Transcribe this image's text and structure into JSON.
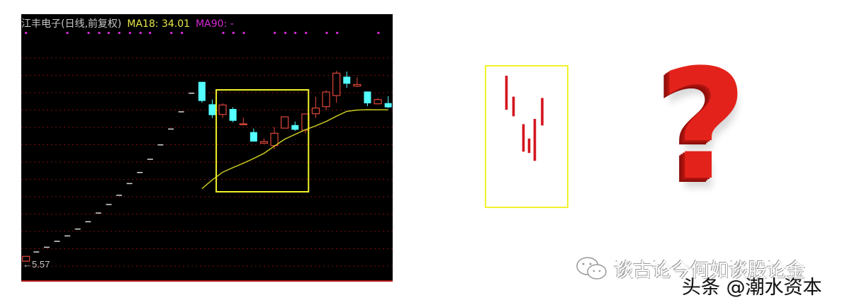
{
  "header": {
    "stock_name": "江丰电子(日线,前复权)",
    "ma18_label": "MA18: 34.01",
    "ma90_label": "MA90: -"
  },
  "low_price_label": "←5.57",
  "colors": {
    "background": "#000000",
    "up_candle": "#e0473a",
    "down_candle": "#54ffff",
    "flat_bar": "#d8d8d8",
    "ma18": "#c8c820",
    "ma90": "#d42ad4",
    "grid": "#7a1010",
    "highlight_box": "#f2f22a",
    "pattern_bar": "#d4141e",
    "question_mark": "#e3231b"
  },
  "icons": {
    "question": "question-mark-3d-icon",
    "wechat": "wechat-icon"
  },
  "watermark": {
    "line1": "谈古论今何如谈股论金",
    "line2": "头条 @潮水资本"
  },
  "chart_data": {
    "type": "candlestick",
    "title": "江丰电子(日线,前复权)",
    "ylim": [
      1.87,
      51.88
    ],
    "grid": true,
    "low_marker": 5.57,
    "candles": [
      {
        "o": 5.7,
        "h": 6.6,
        "l": 5.57,
        "c": 6.6
      },
      {
        "o": 7.42,
        "h": 7.42,
        "l": 7.42,
        "c": 7.42
      },
      {
        "o": 8.3,
        "h": 8.3,
        "l": 8.3,
        "c": 8.3
      },
      {
        "o": 9.41,
        "h": 9.41,
        "l": 9.41,
        "c": 9.41
      },
      {
        "o": 10.42,
        "h": 10.42,
        "l": 10.42,
        "c": 10.42
      },
      {
        "o": 11.7,
        "h": 11.7,
        "l": 11.7,
        "c": 11.7
      },
      {
        "o": 13.07,
        "h": 13.07,
        "l": 13.07,
        "c": 13.07
      },
      {
        "o": 14.7,
        "h": 14.7,
        "l": 14.7,
        "c": 14.7
      },
      {
        "o": 16.29,
        "h": 16.29,
        "l": 16.29,
        "c": 16.29
      },
      {
        "o": 18.01,
        "h": 18.01,
        "l": 18.01,
        "c": 18.01
      },
      {
        "o": 20.21,
        "h": 20.21,
        "l": 20.21,
        "c": 20.21
      },
      {
        "o": 22.28,
        "h": 22.28,
        "l": 22.28,
        "c": 22.28
      },
      {
        "o": 24.75,
        "h": 24.75,
        "l": 24.75,
        "c": 24.75
      },
      {
        "o": 27.44,
        "h": 27.44,
        "l": 27.44,
        "c": 27.44
      },
      {
        "o": 30.4,
        "h": 30.4,
        "l": 30.4,
        "c": 30.4
      },
      {
        "o": 33.62,
        "h": 33.62,
        "l": 33.62,
        "c": 33.62
      },
      {
        "o": 37.1,
        "h": 37.1,
        "l": 37.1,
        "c": 37.1
      },
      {
        "o": 39.22,
        "h": 39.22,
        "l": 35.34,
        "c": 35.65
      },
      {
        "o": 35.03,
        "h": 35.91,
        "l": 32.47,
        "c": 33.0
      },
      {
        "o": 33.13,
        "h": 35.21,
        "l": 32.47,
        "c": 34.9
      },
      {
        "o": 34.15,
        "h": 34.46,
        "l": 31.68,
        "c": 31.94
      },
      {
        "o": 31.28,
        "h": 32.56,
        "l": 31.28,
        "c": 31.37
      },
      {
        "o": 29.83,
        "h": 30.49,
        "l": 28.06,
        "c": 28.06
      },
      {
        "o": 27.75,
        "h": 28.63,
        "l": 27.62,
        "c": 28.06
      },
      {
        "o": 27.31,
        "h": 30.8,
        "l": 26.65,
        "c": 29.61
      },
      {
        "o": 30.57,
        "h": 32.69,
        "l": 30.57,
        "c": 32.69
      },
      {
        "o": 31.14,
        "h": 31.81,
        "l": 30.05,
        "c": 30.27
      },
      {
        "o": 30.18,
        "h": 33.22,
        "l": 29.61,
        "c": 33.22
      },
      {
        "o": 33.26,
        "h": 36.44,
        "l": 32.47,
        "c": 34.32
      },
      {
        "o": 34.59,
        "h": 37.67,
        "l": 33.88,
        "c": 37.32
      },
      {
        "o": 36.66,
        "h": 41.29,
        "l": 35.34,
        "c": 40.85
      },
      {
        "o": 40.19,
        "h": 41.16,
        "l": 38.12,
        "c": 38.87
      },
      {
        "o": 38.43,
        "h": 40.06,
        "l": 38.29,
        "c": 38.73
      },
      {
        "o": 37.41,
        "h": 37.41,
        "l": 34.68,
        "c": 35.21
      },
      {
        "o": 35.12,
        "h": 36.22,
        "l": 34.99,
        "c": 35.91
      },
      {
        "o": 35.25,
        "h": 36.53,
        "l": 34.32,
        "c": 34.46
      }
    ],
    "ma18": {
      "name": "MA18",
      "start_index": 17,
      "values": [
        19.24,
        20.9,
        22.33,
        23.2,
        24.0,
        24.9,
        25.86,
        27.2,
        28.5,
        29.4,
        30.27,
        31.0,
        31.81,
        32.8,
        33.71,
        33.95,
        34.02,
        34.0,
        34.01
      ]
    },
    "highlight_range": [
      19,
      26
    ],
    "pattern_illustration": {
      "bars": [
        {
          "high": 10,
          "low": 7.4
        },
        {
          "high": 8.4,
          "low": 6.9
        },
        {
          "high": 6.3,
          "low": 4.2
        },
        {
          "high": 5.2,
          "low": 4.1
        },
        {
          "high": 6.7,
          "low": 3.5
        },
        {
          "high": 8.3,
          "low": 6.2
        }
      ]
    }
  }
}
